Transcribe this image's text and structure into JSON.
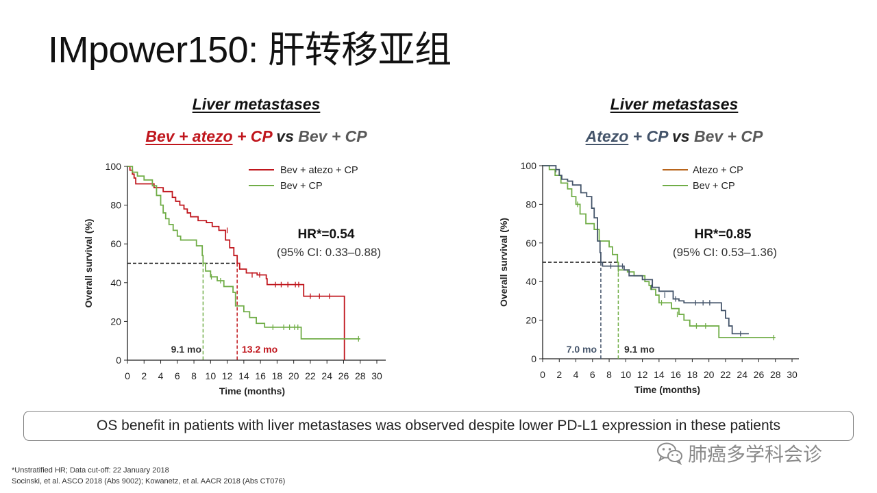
{
  "page": {
    "title": "IMpower150: 肝转移亚组",
    "conclusion": "OS benefit in patients with liver metastases was observed despite lower PD-L1 expression in these patients",
    "footnote_1": "*Unstratified HR; Data cut-off: 22 January 2018",
    "footnote_2": "Socinski, et al. ASCO 2018 (Abs 9002); Kowanetz, et al. AACR 2018 (Abs CT076)",
    "watermark": "肺癌多学科会诊",
    "colors": {
      "red": "#c0161d",
      "green": "#70ad47",
      "slate": "#44546a",
      "brown": "#b8651c"
    }
  },
  "panels": [
    {
      "heading": "Liver metastases",
      "comparison": {
        "arm_a": "Bev + atezo",
        "arm_a_suffix": " + CP",
        "vs": " vs ",
        "arm_b": "Bev + CP"
      }
    },
    {
      "heading": "Liver metastases",
      "comparison": {
        "arm_a": "Atezo",
        "arm_a_suffix": " + CP",
        "vs": " vs ",
        "arm_b": "Bev + CP"
      }
    }
  ],
  "chart_data": [
    {
      "type": "line",
      "step": true,
      "xlabel": "Time (months)",
      "ylabel": "Overall survival (%)",
      "xlim": [
        0,
        30
      ],
      "ylim": [
        0,
        100
      ],
      "xticks": [
        "0",
        "2",
        "4",
        "6",
        "8",
        "10",
        "12",
        "14",
        "16",
        "18",
        "20",
        "22",
        "24",
        "26",
        "28",
        "30"
      ],
      "yticks": [
        "0",
        "20",
        "40",
        "60",
        "80",
        "100"
      ],
      "hr_label": "HR*=0.54",
      "ci_label": "(95% CI: 0.33–0.88)",
      "legend_position": "top-right",
      "series": [
        {
          "name": "Bev + atezo + CP",
          "color": "#c0161d",
          "points": [
            [
              0,
              100
            ],
            [
              0.3,
              98
            ],
            [
              0.6,
              96
            ],
            [
              0.8,
              94
            ],
            [
              1,
              91
            ],
            [
              3,
              91
            ],
            [
              3.2,
              89
            ],
            [
              4.1,
              89
            ],
            [
              4.3,
              87
            ],
            [
              5.2,
              87
            ],
            [
              5.4,
              84
            ],
            [
              5.8,
              82
            ],
            [
              6.3,
              80
            ],
            [
              6.8,
              78
            ],
            [
              7.2,
              76
            ],
            [
              7.6,
              74
            ],
            [
              8.5,
              72
            ],
            [
              9.5,
              71
            ],
            [
              10.2,
              69
            ],
            [
              11,
              67
            ],
            [
              11.8,
              62
            ],
            [
              12.3,
              58
            ],
            [
              12.8,
              54
            ],
            [
              13.2,
              50
            ],
            [
              13.5,
              47
            ],
            [
              14.3,
              45
            ],
            [
              15.6,
              44
            ],
            [
              16.7,
              42
            ],
            [
              16.8,
              39
            ],
            [
              21,
              39
            ],
            [
              21.2,
              33
            ],
            [
              24,
              33
            ],
            [
              26,
              33
            ],
            [
              26.1,
              0
            ]
          ],
          "censored": [
            [
              12,
              67
            ],
            [
              15,
              44
            ],
            [
              15.9,
              44
            ],
            [
              17.8,
              39
            ],
            [
              18.5,
              39
            ],
            [
              19.3,
              39
            ],
            [
              20.2,
              39
            ],
            [
              20.6,
              39
            ],
            [
              22,
              33
            ],
            [
              23.1,
              33
            ],
            [
              24.3,
              33
            ]
          ],
          "median_label": "13.2 mo",
          "median": 13.2
        },
        {
          "name": "Bev + CP",
          "color": "#70ad47",
          "points": [
            [
              0,
              100
            ],
            [
              0.6,
              97
            ],
            [
              1.2,
              95
            ],
            [
              2,
              93
            ],
            [
              3,
              90
            ],
            [
              3.5,
              85
            ],
            [
              4,
              80
            ],
            [
              4.3,
              76
            ],
            [
              4.6,
              73
            ],
            [
              5,
              70
            ],
            [
              5.5,
              67
            ],
            [
              6,
              64
            ],
            [
              6.4,
              62
            ],
            [
              8,
              62
            ],
            [
              8.3,
              59
            ],
            [
              9,
              54
            ],
            [
              9.1,
              50
            ],
            [
              9.4,
              46
            ],
            [
              10,
              43
            ],
            [
              10.8,
              41
            ],
            [
              11.6,
              38
            ],
            [
              12.7,
              35
            ],
            [
              13,
              28
            ],
            [
              14,
              25
            ],
            [
              14.7,
              22
            ],
            [
              15.5,
              19
            ],
            [
              16.5,
              17
            ],
            [
              20.9,
              17
            ],
            [
              20.9,
              11
            ],
            [
              28,
              11
            ]
          ],
          "censored": [
            [
              9.1,
              50
            ],
            [
              10.1,
              43
            ],
            [
              11.2,
              41
            ],
            [
              17.5,
              17
            ],
            [
              18.8,
              17
            ],
            [
              19.5,
              17
            ],
            [
              20.1,
              17
            ],
            [
              20.5,
              17
            ],
            [
              27.8,
              11
            ]
          ],
          "median_label": "9.1 mo",
          "median": 9.1
        }
      ]
    },
    {
      "type": "line",
      "step": true,
      "xlabel": "Time (months)",
      "ylabel": "Overall survival (%)",
      "xlim": [
        0,
        30
      ],
      "ylim": [
        0,
        100
      ],
      "xticks": [
        "0",
        "2",
        "4",
        "6",
        "8",
        "10",
        "12",
        "14",
        "16",
        "18",
        "20",
        "22",
        "24",
        "26",
        "28",
        "30"
      ],
      "yticks": [
        "0",
        "20",
        "40",
        "60",
        "80",
        "100"
      ],
      "hr_label": "HR*=0.85",
      "ci_label": "(95% CI: 0.53–1.36)",
      "legend_position": "top-right",
      "series": [
        {
          "name": "Atezo + CP",
          "color": "#b8651c",
          "points": [],
          "censored": []
        },
        {
          "name": "Bev + CP",
          "color": "#70ad47",
          "points": [
            [
              0,
              100
            ],
            [
              0.8,
              98
            ],
            [
              1.5,
              95
            ],
            [
              2.2,
              91
            ],
            [
              3,
              88
            ],
            [
              3.5,
              84
            ],
            [
              4,
              80
            ],
            [
              4.5,
              75
            ],
            [
              5.2,
              70
            ],
            [
              6.2,
              67
            ],
            [
              6.8,
              61
            ],
            [
              7.5,
              61
            ],
            [
              8,
              58
            ],
            [
              8.4,
              54
            ],
            [
              9,
              50
            ],
            [
              9.1,
              46
            ],
            [
              10.2,
              45
            ],
            [
              11,
              43
            ],
            [
              12.3,
              40
            ],
            [
              12.8,
              38
            ],
            [
              13,
              36
            ],
            [
              13.6,
              33
            ],
            [
              14,
              29
            ],
            [
              15.5,
              26
            ],
            [
              16.4,
              23
            ],
            [
              17,
              20
            ],
            [
              17.7,
              17
            ],
            [
              21,
              17
            ],
            [
              21.2,
              11
            ],
            [
              28,
              11
            ]
          ],
          "censored": [
            [
              4.2,
              80
            ],
            [
              9.1,
              46
            ],
            [
              10.4,
              45
            ],
            [
              14.3,
              29
            ],
            [
              16.2,
              23
            ],
            [
              18.5,
              17
            ],
            [
              19.6,
              17
            ],
            [
              27.8,
              11
            ]
          ],
          "median_label": "9.1 mo",
          "median": 9.1
        },
        {
          "name": "",
          "color": "#44546a",
          "points": [
            [
              0,
              100
            ],
            [
              1.6,
              98
            ],
            [
              2,
              95
            ],
            [
              2.3,
              93
            ],
            [
              3,
              92
            ],
            [
              3.6,
              90
            ],
            [
              4.6,
              86
            ],
            [
              5.3,
              84
            ],
            [
              5.9,
              78
            ],
            [
              6.2,
              73
            ],
            [
              6.6,
              61
            ],
            [
              6.9,
              55
            ],
            [
              7,
              50
            ],
            [
              7.2,
              48
            ],
            [
              9.8,
              46
            ],
            [
              10.4,
              43
            ],
            [
              12,
              41
            ],
            [
              13.2,
              37
            ],
            [
              14,
              35
            ],
            [
              15.7,
              31
            ],
            [
              16.4,
              30
            ],
            [
              17,
              29
            ],
            [
              20.9,
              29
            ],
            [
              21.5,
              25
            ],
            [
              22,
              21
            ],
            [
              22.4,
              17
            ],
            [
              22.8,
              13
            ],
            [
              24.8,
              13
            ]
          ],
          "censored": [
            [
              1.6,
              98
            ],
            [
              8.2,
              48
            ],
            [
              9.6,
              48
            ],
            [
              13.1,
              37
            ],
            [
              14.7,
              33
            ],
            [
              16,
              31
            ],
            [
              18.4,
              29
            ],
            [
              19.3,
              29
            ],
            [
              20.1,
              29
            ],
            [
              23.8,
              13
            ]
          ],
          "median_label": "7.0 mo",
          "median": 7.0
        }
      ]
    }
  ]
}
